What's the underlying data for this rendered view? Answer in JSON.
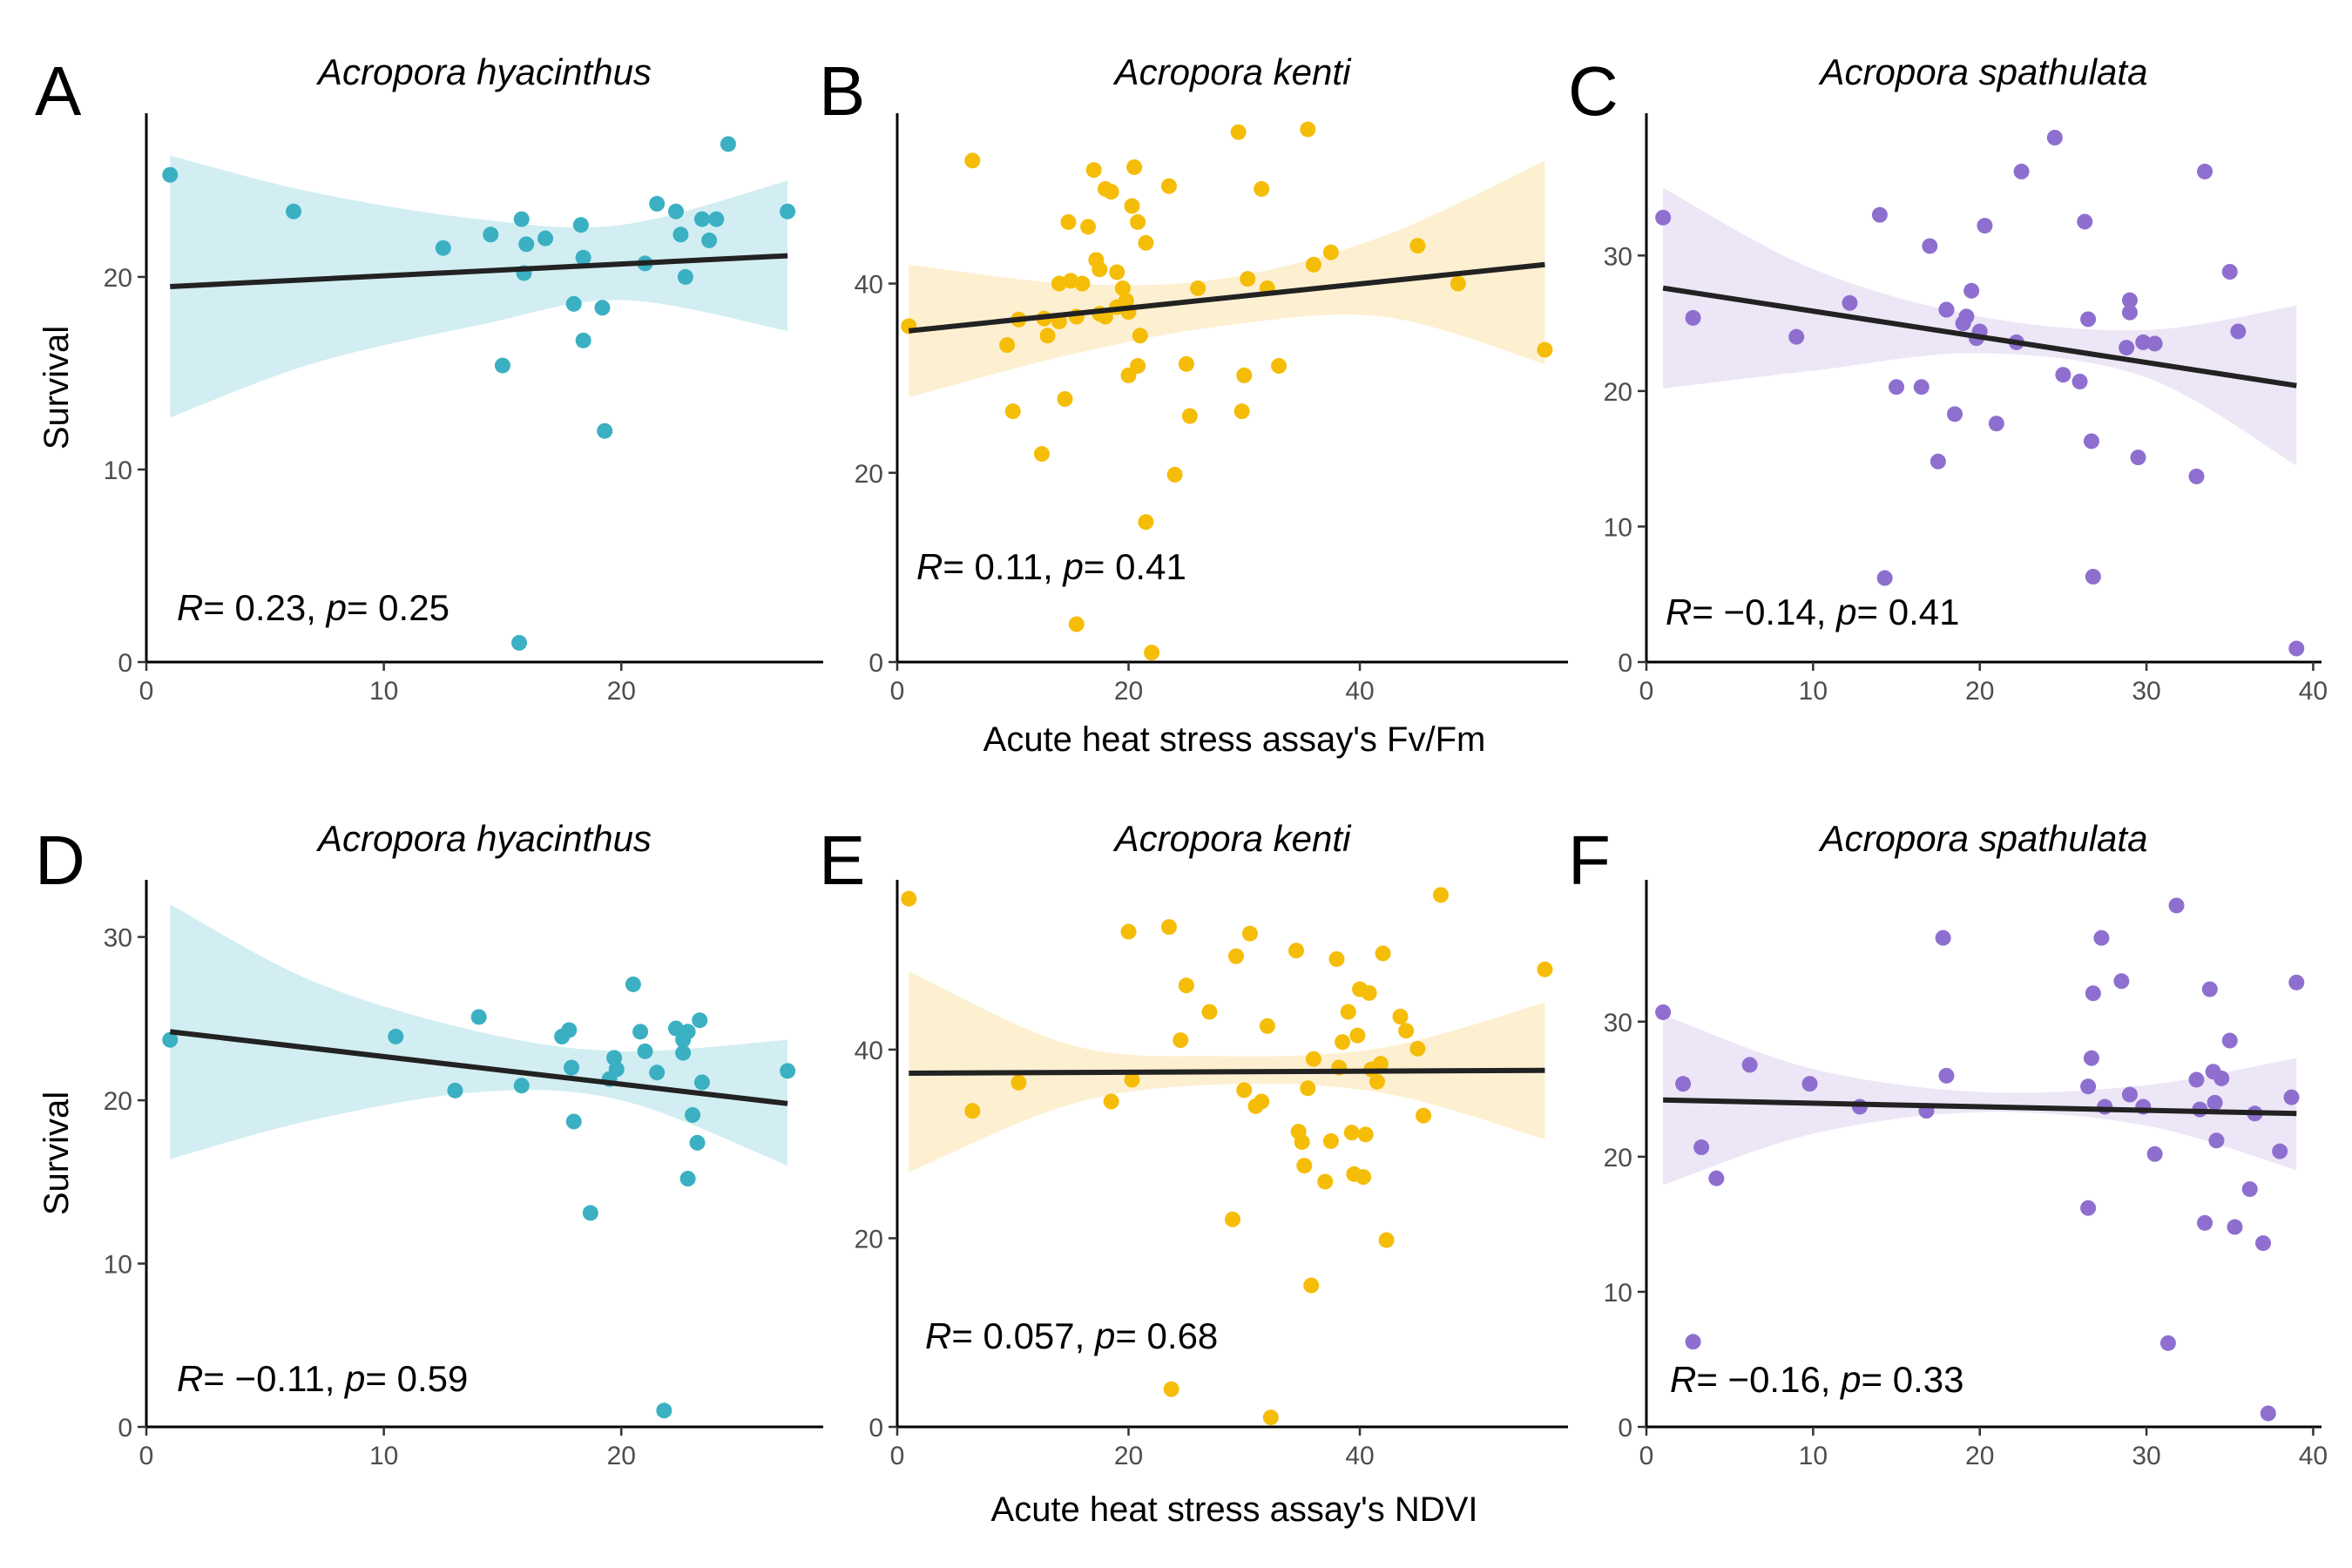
{
  "figure": {
    "row_xlabels": [
      "Acute heat stress assay's  Fv/Fm",
      "Acute heat stress assay's  NDVI"
    ],
    "ylabel": "Survival"
  },
  "chart_data": [
    {
      "type": "scatter",
      "panel": "A",
      "title": "Acropora hyacinthus",
      "xlabel": "",
      "ylabel": "Survival",
      "color": "#3AB0C2",
      "band_color": "#D2EEF3",
      "xlim": [
        0,
        28.5
      ],
      "ylim": [
        0,
        28.5
      ],
      "xticks": [
        0,
        10,
        20
      ],
      "yticks": [
        0,
        10,
        20
      ],
      "stat": {
        "r_label": "R",
        "r_value": "= 0.23,",
        "p_label": "p",
        "p_value": "= 0.25"
      },
      "fit": {
        "x": [
          1,
          27
        ],
        "y": [
          19.5,
          21.1
        ]
      },
      "band": {
        "x": [
          1,
          7,
          14,
          20,
          27
        ],
        "upper": [
          26.3,
          24.4,
          23.0,
          22.7,
          25.0
        ],
        "lower": [
          12.7,
          15.5,
          17.5,
          18.8,
          17.2
        ]
      },
      "points": {
        "x": [
          1.0,
          6.2,
          12.5,
          14.5,
          15.8,
          16.0,
          16.8,
          15.7,
          18.3,
          18.4,
          15.0,
          18.0,
          18.4,
          19.2,
          19.3,
          21.0,
          21.5,
          22.3,
          22.5,
          22.7,
          23.4,
          23.7,
          24.0,
          24.5,
          27.0,
          15.9
        ],
        "y": [
          25.3,
          23.4,
          21.5,
          22.2,
          23.0,
          21.7,
          22.0,
          1.0,
          22.7,
          21.0,
          15.4,
          18.6,
          16.7,
          18.4,
          12.0,
          20.7,
          23.8,
          23.4,
          22.2,
          20.0,
          23.0,
          21.9,
          23.0,
          26.9,
          23.4,
          20.2
        ]
      }
    },
    {
      "type": "scatter",
      "panel": "B",
      "title": "Acropora kenti",
      "xlabel": "",
      "ylabel": "",
      "color": "#F5BD08",
      "band_color": "#FDF0D1",
      "xlim": [
        0,
        58
      ],
      "ylim": [
        0,
        58
      ],
      "xticks": [
        0,
        20,
        40
      ],
      "yticks": [
        0,
        20,
        40
      ],
      "stat": {
        "r_label": "R",
        "r_value": "= 0.11,",
        "p_label": "p",
        "p_value": "= 0.41"
      },
      "fit": {
        "x": [
          1,
          56
        ],
        "y": [
          35.0,
          42.0
        ]
      },
      "band": {
        "x": [
          1,
          15,
          28,
          42,
          56
        ],
        "upper": [
          42.0,
          40.0,
          40.5,
          45.0,
          53.0
        ],
        "lower": [
          28.0,
          32.5,
          35.5,
          36.5,
          31.5
        ]
      },
      "points": {
        "x": [
          1.0,
          6.5,
          9.5,
          10.0,
          12.5,
          13.0,
          14.0,
          14.0,
          14.5,
          14.8,
          15.0,
          15.5,
          16.0,
          16.5,
          17.0,
          17.2,
          17.5,
          18.0,
          18.5,
          19.0,
          19.5,
          20.0,
          20.3,
          20.5,
          20.8,
          21.0,
          21.5,
          22.0,
          23.5,
          24.0,
          25.0,
          25.3,
          26.0,
          17.5,
          18.0,
          19.0,
          20.0,
          29.5,
          29.8,
          30.0,
          30.3,
          31.5,
          32.0,
          33.0,
          35.5,
          36.0,
          37.5,
          45.0,
          48.5,
          56.0,
          21.5,
          15.5,
          12.7,
          10.5,
          20.8,
          19.8
        ],
        "y": [
          35.5,
          53.0,
          33.5,
          26.5,
          22.0,
          34.5,
          40.0,
          36.0,
          27.8,
          46.5,
          40.3,
          4.0,
          40.0,
          46.0,
          52.0,
          42.5,
          41.5,
          50.0,
          49.7,
          41.2,
          39.5,
          37.0,
          48.2,
          52.3,
          46.5,
          34.5,
          44.3,
          1.0,
          50.3,
          19.8,
          31.5,
          26.0,
          39.5,
          36.8,
          36.5,
          37.5,
          30.3,
          56.0,
          26.5,
          30.3,
          40.5,
          50.0,
          39.5,
          31.3,
          56.3,
          42.0,
          43.3,
          44.0,
          40.0,
          33.0,
          14.8,
          36.5,
          36.3,
          36.2,
          31.3,
          38.2
        ]
      }
    },
    {
      "type": "scatter",
      "panel": "C",
      "title": "Acropora spathulata",
      "xlabel": "",
      "ylabel": "",
      "color": "#8E6FCF",
      "band_color": "#ECE6F6",
      "xlim": [
        0,
        40.5
      ],
      "ylim": [
        0,
        40.5
      ],
      "xticks": [
        0,
        10,
        20,
        30,
        40
      ],
      "yticks": [
        0,
        10,
        20,
        30
      ],
      "stat": {
        "r_label": "R",
        "r_value": "= −0.14,",
        "p_label": "p",
        "p_value": "= 0.41"
      },
      "fit": {
        "x": [
          1,
          39
        ],
        "y": [
          27.6,
          20.4
        ]
      },
      "band": {
        "x": [
          1,
          10,
          20,
          30,
          39
        ],
        "upper": [
          35.0,
          29.0,
          25.5,
          24.5,
          26.3
        ],
        "lower": [
          20.2,
          21.5,
          22.8,
          21.0,
          14.5
        ]
      },
      "points": {
        "x": [
          1.0,
          2.8,
          9.0,
          12.2,
          14.0,
          14.3,
          15.0,
          16.5,
          17.0,
          17.5,
          18.0,
          18.5,
          19.0,
          19.2,
          19.5,
          19.8,
          20.3,
          21.0,
          22.2,
          22.5,
          24.5,
          25.0,
          26.0,
          26.3,
          26.7,
          26.8,
          29.0,
          29.5,
          29.8,
          30.5,
          33.0,
          33.5,
          35.0,
          35.5,
          39.0,
          29.0,
          18.0,
          20.0,
          28.8,
          26.5
        ],
        "y": [
          32.8,
          25.4,
          24.0,
          26.5,
          33.0,
          6.2,
          20.3,
          20.3,
          30.7,
          14.8,
          26.0,
          18.3,
          25.0,
          25.5,
          27.4,
          23.9,
          32.2,
          17.6,
          23.6,
          36.2,
          38.7,
          21.2,
          20.7,
          32.5,
          16.3,
          6.3,
          25.8,
          15.1,
          23.6,
          23.5,
          13.7,
          36.2,
          28.8,
          24.4,
          1.0,
          26.7,
          26.0,
          24.4,
          23.2,
          25.3
        ]
      }
    },
    {
      "type": "scatter",
      "panel": "D",
      "title": "Acropora hyacinthus",
      "xlabel": "",
      "ylabel": "Survival",
      "color": "#3AB0C2",
      "band_color": "#D2EEF3",
      "xlim": [
        0,
        28.5
      ],
      "ylim": [
        0,
        33.5
      ],
      "xticks": [
        0,
        10,
        20
      ],
      "yticks": [
        0,
        10,
        20,
        30
      ],
      "stat": {
        "r_label": "R",
        "r_value": "= −0.11,",
        "p_label": "p",
        "p_value": "= 0.59"
      },
      "fit": {
        "x": [
          1,
          27
        ],
        "y": [
          24.2,
          19.8
        ]
      },
      "band": {
        "x": [
          1,
          7,
          14,
          20,
          27
        ],
        "upper": [
          32.0,
          27.3,
          24.2,
          23.0,
          23.7
        ],
        "lower": [
          16.4,
          18.8,
          20.5,
          20.0,
          16.0
        ]
      },
      "points": {
        "x": [
          1.0,
          10.5,
          13.0,
          14.0,
          15.8,
          17.5,
          17.8,
          18.0,
          18.7,
          19.5,
          19.7,
          19.8,
          20.5,
          20.8,
          21.0,
          21.5,
          21.8,
          22.3,
          22.6,
          22.8,
          22.8,
          23.0,
          23.2,
          23.3,
          27.0,
          17.9,
          22.6,
          23.4
        ],
        "y": [
          23.7,
          23.9,
          20.6,
          25.1,
          20.9,
          23.9,
          24.3,
          18.7,
          13.1,
          21.3,
          22.6,
          21.9,
          27.1,
          24.2,
          23.0,
          21.7,
          1.0,
          24.4,
          22.9,
          15.2,
          24.2,
          19.1,
          17.4,
          24.9,
          21.8,
          22.0,
          23.7,
          21.1
        ]
      }
    },
    {
      "type": "scatter",
      "panel": "E",
      "title": "Acropora kenti",
      "xlabel": "",
      "ylabel": "",
      "color": "#F5BD08",
      "band_color": "#FDF0D1",
      "xlim": [
        0,
        58
      ],
      "ylim": [
        0,
        58
      ],
      "xticks": [
        0,
        20,
        40
      ],
      "yticks": [
        0,
        20,
        40
      ],
      "stat": {
        "r_label": "R",
        "r_value": "= 0.057,",
        "p_label": "p",
        "p_value": "= 0.68"
      },
      "fit": {
        "x": [
          1,
          56
        ],
        "y": [
          37.5,
          37.8
        ]
      },
      "band": {
        "x": [
          1,
          15,
          28,
          42,
          56
        ],
        "upper": [
          48.3,
          40.5,
          39.3,
          40.2,
          45.0
        ],
        "lower": [
          27.0,
          34.2,
          36.3,
          35.4,
          30.5
        ]
      },
      "points": {
        "x": [
          1.0,
          6.5,
          10.5,
          18.5,
          20.0,
          20.3,
          23.5,
          23.7,
          24.5,
          25.0,
          27.0,
          29.0,
          29.3,
          30.0,
          30.5,
          31.0,
          31.5,
          32.0,
          32.3,
          34.5,
          34.7,
          35.0,
          35.2,
          35.5,
          35.8,
          36.0,
          37.0,
          37.5,
          38.0,
          38.2,
          38.5,
          39.0,
          39.3,
          39.5,
          39.8,
          40.0,
          40.3,
          40.8,
          41.5,
          41.8,
          42.0,
          42.3,
          43.5,
          44.0,
          45.0,
          45.5,
          47.0,
          56.0,
          40.5,
          41.0
        ],
        "y": [
          56.0,
          33.5,
          36.5,
          34.5,
          52.5,
          36.8,
          53.0,
          4.0,
          41.0,
          46.8,
          44.0,
          22.0,
          49.9,
          35.7,
          52.3,
          34.0,
          34.5,
          42.5,
          1.0,
          50.5,
          31.3,
          30.2,
          27.7,
          35.9,
          15.0,
          39.0,
          26.0,
          30.3,
          49.6,
          38.1,
          40.8,
          44.0,
          31.2,
          26.8,
          41.5,
          46.4,
          26.5,
          46.0,
          36.6,
          38.5,
          50.2,
          19.8,
          43.5,
          42.0,
          40.1,
          33.0,
          56.4,
          48.5,
          31.0,
          37.9
        ]
      }
    },
    {
      "type": "scatter",
      "panel": "F",
      "title": "Acropora spathulata",
      "xlabel": "",
      "ylabel": "",
      "color": "#8E6FCF",
      "band_color": "#ECE6F6",
      "xlim": [
        0,
        40.5
      ],
      "ylim": [
        0,
        40.5
      ],
      "xticks": [
        0,
        10,
        20,
        30,
        40
      ],
      "yticks": [
        0,
        10,
        20,
        30
      ],
      "stat": {
        "r_label": "R",
        "r_value": "= −0.16,",
        "p_label": "p",
        "p_value": "= 0.33"
      },
      "fit": {
        "x": [
          1,
          39
        ],
        "y": [
          24.2,
          23.2
        ]
      },
      "band": {
        "x": [
          1,
          10,
          20,
          30,
          39
        ],
        "upper": [
          30.5,
          26.5,
          24.8,
          25.3,
          27.3
        ],
        "lower": [
          17.9,
          21.7,
          23.3,
          22.3,
          19.0
        ]
      },
      "points": {
        "x": [
          1.0,
          2.2,
          2.8,
          3.3,
          4.2,
          6.2,
          9.8,
          12.8,
          16.8,
          17.8,
          18.0,
          26.5,
          26.5,
          26.7,
          26.8,
          27.3,
          27.5,
          28.5,
          29.0,
          29.8,
          30.5,
          31.3,
          31.8,
          33.0,
          33.2,
          33.5,
          33.8,
          34.0,
          34.2,
          34.5,
          35.0,
          36.2,
          36.5,
          37.0,
          37.3,
          38.0,
          38.7,
          39.0,
          34.1,
          35.3
        ],
        "y": [
          30.7,
          25.4,
          6.3,
          20.7,
          18.4,
          26.8,
          25.4,
          23.7,
          23.4,
          36.2,
          26.0,
          16.2,
          25.2,
          27.3,
          32.1,
          36.2,
          23.7,
          33.0,
          24.6,
          23.7,
          20.2,
          6.2,
          38.6,
          25.7,
          23.5,
          15.1,
          32.4,
          26.3,
          21.2,
          25.8,
          28.6,
          17.6,
          23.2,
          13.6,
          1.0,
          20.4,
          24.4,
          32.9,
          24.0,
          14.8
        ]
      }
    }
  ]
}
